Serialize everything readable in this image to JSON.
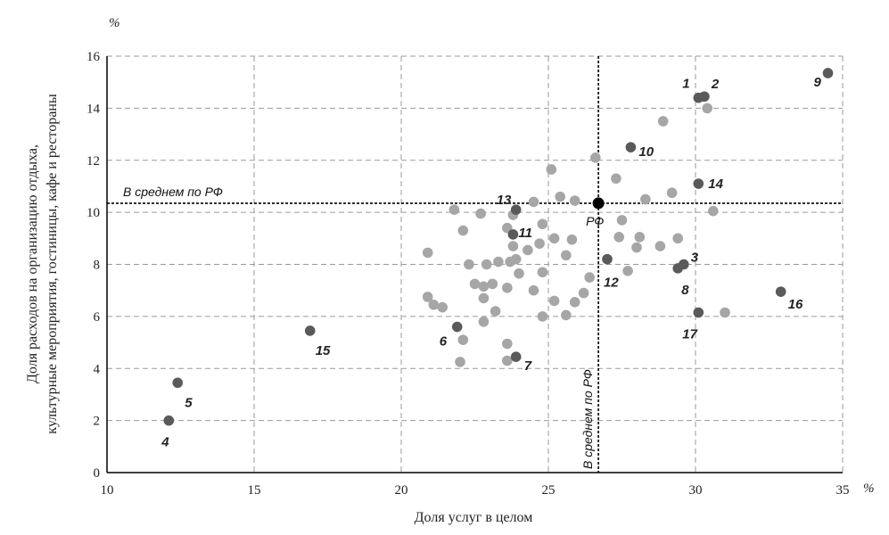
{
  "chart_data": {
    "type": "scatter",
    "xlabel": "Доля услуг в целом",
    "ylabel_line1": "Доля расходов на организацию отдыха,",
    "ylabel_line2": "культурные мероприятия, гостиницы, кафе и рестораны",
    "x_unit": "%",
    "y_unit": "%",
    "xlim": [
      10,
      35
    ],
    "ylim": [
      0,
      16
    ],
    "x_ticks": [
      10,
      15,
      20,
      25,
      30,
      35
    ],
    "y_ticks": [
      0,
      2,
      4,
      6,
      8,
      10,
      12,
      14,
      16
    ],
    "grid": true,
    "average": {
      "x": 26.7,
      "y": 10.35,
      "point_label": "РФ",
      "horizontal_label": "В среднем по РФ",
      "vertical_label": "В среднем по РФ"
    },
    "colors": {
      "labeled_point": "#5a5a5a",
      "unlabeled_point": "#a6a6a6",
      "average_point": "#000000",
      "grid": "#9a9a9a"
    },
    "labeled_points": [
      {
        "label": "1",
        "x": 30.1,
        "y": 14.4
      },
      {
        "label": "2",
        "x": 30.3,
        "y": 14.45
      },
      {
        "label": "3",
        "x": 29.6,
        "y": 8.0
      },
      {
        "label": "4",
        "x": 12.1,
        "y": 2.0
      },
      {
        "label": "5",
        "x": 12.4,
        "y": 3.45
      },
      {
        "label": "6",
        "x": 21.9,
        "y": 5.6
      },
      {
        "label": "7",
        "x": 23.9,
        "y": 4.45
      },
      {
        "label": "8",
        "x": 29.4,
        "y": 7.85
      },
      {
        "label": "9",
        "x": 34.5,
        "y": 15.35
      },
      {
        "label": "10",
        "x": 27.8,
        "y": 12.5
      },
      {
        "label": "11",
        "x": 23.8,
        "y": 9.15
      },
      {
        "label": "12",
        "x": 27.0,
        "y": 8.2
      },
      {
        "label": "13",
        "x": 23.9,
        "y": 10.1
      },
      {
        "label": "14",
        "x": 30.1,
        "y": 11.1
      },
      {
        "label": "15",
        "x": 16.9,
        "y": 5.45
      },
      {
        "label": "16",
        "x": 32.9,
        "y": 6.95
      },
      {
        "label": "17",
        "x": 30.1,
        "y": 6.15
      }
    ],
    "unlabeled_points": [
      {
        "x": 26.6,
        "y": 12.1
      },
      {
        "x": 25.1,
        "y": 11.65
      },
      {
        "x": 27.3,
        "y": 11.3
      },
      {
        "x": 28.9,
        "y": 13.5
      },
      {
        "x": 30.4,
        "y": 14.0
      },
      {
        "x": 29.2,
        "y": 10.75
      },
      {
        "x": 28.3,
        "y": 10.5
      },
      {
        "x": 30.6,
        "y": 10.05
      },
      {
        "x": 25.4,
        "y": 10.6
      },
      {
        "x": 24.5,
        "y": 10.4
      },
      {
        "x": 25.9,
        "y": 10.45
      },
      {
        "x": 21.8,
        "y": 10.1
      },
      {
        "x": 22.7,
        "y": 9.95
      },
      {
        "x": 23.8,
        "y": 9.9
      },
      {
        "x": 22.1,
        "y": 9.3
      },
      {
        "x": 23.6,
        "y": 9.4
      },
      {
        "x": 24.8,
        "y": 9.55
      },
      {
        "x": 27.5,
        "y": 9.7
      },
      {
        "x": 25.2,
        "y": 9.0
      },
      {
        "x": 25.8,
        "y": 8.95
      },
      {
        "x": 27.4,
        "y": 9.05
      },
      {
        "x": 28.1,
        "y": 9.05
      },
      {
        "x": 29.4,
        "y": 9.0
      },
      {
        "x": 24.7,
        "y": 8.8
      },
      {
        "x": 23.8,
        "y": 8.7
      },
      {
        "x": 24.3,
        "y": 8.55
      },
      {
        "x": 28.0,
        "y": 8.65
      },
      {
        "x": 28.8,
        "y": 8.7
      },
      {
        "x": 20.9,
        "y": 8.45
      },
      {
        "x": 25.6,
        "y": 8.35
      },
      {
        "x": 23.9,
        "y": 8.2
      },
      {
        "x": 23.3,
        "y": 8.1
      },
      {
        "x": 23.7,
        "y": 8.1
      },
      {
        "x": 22.3,
        "y": 8.0
      },
      {
        "x": 22.9,
        "y": 8.0
      },
      {
        "x": 24.8,
        "y": 7.7
      },
      {
        "x": 24.0,
        "y": 7.65
      },
      {
        "x": 27.7,
        "y": 7.75
      },
      {
        "x": 26.4,
        "y": 7.5
      },
      {
        "x": 22.5,
        "y": 7.25
      },
      {
        "x": 23.1,
        "y": 7.25
      },
      {
        "x": 22.8,
        "y": 7.15
      },
      {
        "x": 23.6,
        "y": 7.1
      },
      {
        "x": 24.5,
        "y": 7.0
      },
      {
        "x": 26.2,
        "y": 6.9
      },
      {
        "x": 20.9,
        "y": 6.75
      },
      {
        "x": 21.1,
        "y": 6.45
      },
      {
        "x": 21.4,
        "y": 6.35
      },
      {
        "x": 22.8,
        "y": 6.7
      },
      {
        "x": 25.2,
        "y": 6.6
      },
      {
        "x": 25.9,
        "y": 6.55
      },
      {
        "x": 23.2,
        "y": 6.2
      },
      {
        "x": 24.8,
        "y": 6.0
      },
      {
        "x": 25.6,
        "y": 6.05
      },
      {
        "x": 31.0,
        "y": 6.15
      },
      {
        "x": 22.8,
        "y": 5.8
      },
      {
        "x": 22.1,
        "y": 5.1
      },
      {
        "x": 23.6,
        "y": 4.95
      },
      {
        "x": 22.0,
        "y": 4.25
      },
      {
        "x": 23.6,
        "y": 4.3
      }
    ]
  }
}
